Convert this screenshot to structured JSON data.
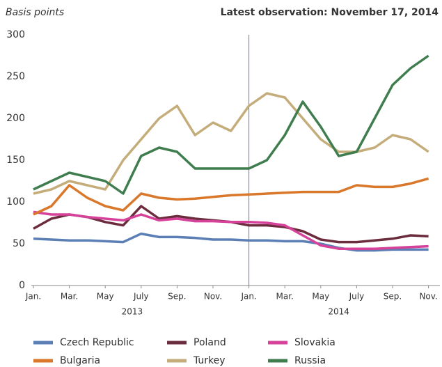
{
  "chart_data": {
    "type": "line",
    "title": "Basis points",
    "subtitle": "Latest observation: November 17, 2014",
    "x": [
      "2013-01",
      "2013-02",
      "2013-03",
      "2013-04",
      "2013-05",
      "2013-06",
      "2013-07",
      "2013-08",
      "2013-09",
      "2013-10",
      "2013-11",
      "2013-12",
      "2014-01",
      "2014-02",
      "2014-03",
      "2014-04",
      "2014-05",
      "2014-06",
      "2014-07",
      "2014-08",
      "2014-09",
      "2014-10",
      "2014-11"
    ],
    "xticks": [
      {
        "value": "2013-01",
        "label": "Jan."
      },
      {
        "value": "2013-03",
        "label": "Mar."
      },
      {
        "value": "2013-05",
        "label": "May"
      },
      {
        "value": "2013-07",
        "label": "July"
      },
      {
        "value": "2013-09",
        "label": "Sep."
      },
      {
        "value": "2013-11",
        "label": "Nov."
      },
      {
        "value": "2014-01",
        "label": "Jan."
      },
      {
        "value": "2014-03",
        "label": "Mar."
      },
      {
        "value": "2014-05",
        "label": "May"
      },
      {
        "value": "2014-07",
        "label": "July"
      },
      {
        "value": "2014-09",
        "label": "Sep."
      },
      {
        "value": "2014-11",
        "label": "Nov."
      }
    ],
    "x_groups": [
      {
        "value": "2013-01",
        "label": "2013"
      },
      {
        "value": "2014-01",
        "label": "2014"
      }
    ],
    "ylim": [
      0,
      300
    ],
    "yticks": [
      0,
      50,
      100,
      150,
      200,
      250,
      300
    ],
    "series": [
      {
        "name": "Czech Republic",
        "color": "#5b7fb5",
        "values": [
          56,
          55,
          54,
          54,
          53,
          52,
          62,
          58,
          58,
          57,
          55,
          55,
          54,
          54,
          53,
          53,
          50,
          45,
          42,
          42,
          43,
          43,
          43
        ]
      },
      {
        "name": "Poland",
        "color": "#6b2d3d",
        "values": [
          68,
          80,
          85,
          82,
          76,
          72,
          95,
          80,
          83,
          80,
          78,
          76,
          72,
          72,
          70,
          65,
          55,
          52,
          52,
          54,
          56,
          60,
          59
        ]
      },
      {
        "name": "Slovakia",
        "color": "#d6419a",
        "values": [
          88,
          85,
          85,
          82,
          80,
          78,
          85,
          78,
          80,
          77,
          77,
          76,
          76,
          75,
          72,
          60,
          48,
          44,
          44,
          44,
          45,
          46,
          47
        ]
      },
      {
        "name": "Bulgaria",
        "color": "#d9772a",
        "values": [
          85,
          95,
          120,
          105,
          95,
          90,
          110,
          105,
          103,
          104,
          106,
          108,
          109,
          110,
          111,
          112,
          112,
          112,
          120,
          118,
          118,
          122,
          128
        ]
      },
      {
        "name": "Turkey",
        "color": "#c4ad7a",
        "values": [
          110,
          115,
          125,
          120,
          115,
          150,
          175,
          200,
          215,
          180,
          195,
          185,
          215,
          230,
          225,
          200,
          175,
          160,
          160,
          165,
          180,
          175,
          160
        ]
      },
      {
        "name": "Russia",
        "color": "#3f7d4f",
        "values": [
          115,
          125,
          135,
          130,
          125,
          110,
          155,
          165,
          160,
          140,
          140,
          140,
          140,
          150,
          180,
          220,
          190,
          155,
          160,
          200,
          240,
          260,
          275
        ]
      }
    ]
  }
}
